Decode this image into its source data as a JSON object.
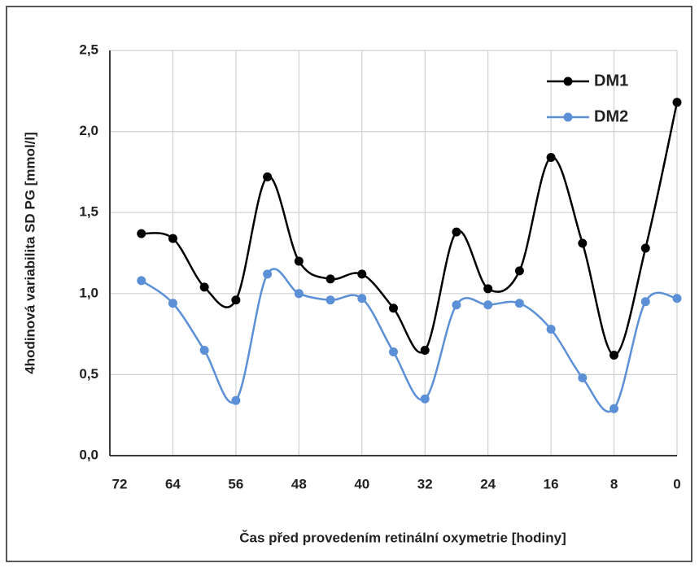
{
  "chart_data": {
    "type": "line",
    "x_label": "Čas před provedením retinální oxymetrie [hodiny]",
    "y_label": "4hodinová variabilita SD PG [mmol/l]",
    "x": [
      68,
      64,
      60,
      56,
      52,
      48,
      44,
      40,
      36,
      32,
      28,
      24,
      20,
      16,
      12,
      8,
      4,
      0
    ],
    "series": [
      {
        "name": "DM1",
        "color": "#000000",
        "values": [
          1.37,
          1.34,
          1.04,
          0.96,
          1.72,
          1.2,
          1.09,
          1.12,
          0.91,
          0.65,
          1.38,
          1.03,
          1.14,
          1.84,
          1.31,
          0.62,
          1.28,
          2.18
        ]
      },
      {
        "name": "DM2",
        "color": "#5b8fd6",
        "values": [
          1.08,
          0.94,
          0.65,
          0.34,
          1.12,
          1.0,
          0.96,
          0.97,
          0.64,
          0.35,
          0.93,
          0.93,
          0.94,
          0.78,
          0.48,
          0.29,
          0.95,
          0.97
        ]
      }
    ],
    "xlim": [
      72,
      0
    ],
    "xticks": [
      72,
      64,
      56,
      48,
      40,
      32,
      24,
      16,
      8,
      0
    ],
    "ylim": [
      0,
      2.5
    ],
    "yticks": [
      {
        "value": 0,
        "label": "0,0"
      },
      {
        "value": 0.5,
        "label": "0,5"
      },
      {
        "value": 1,
        "label": "1,0"
      },
      {
        "value": 1.5,
        "label": "1,5"
      },
      {
        "value": 2,
        "label": "2,0"
      },
      {
        "value": 2.5,
        "label": "2,5"
      }
    ],
    "grid": true,
    "smooth": true,
    "legend": "upper right"
  }
}
